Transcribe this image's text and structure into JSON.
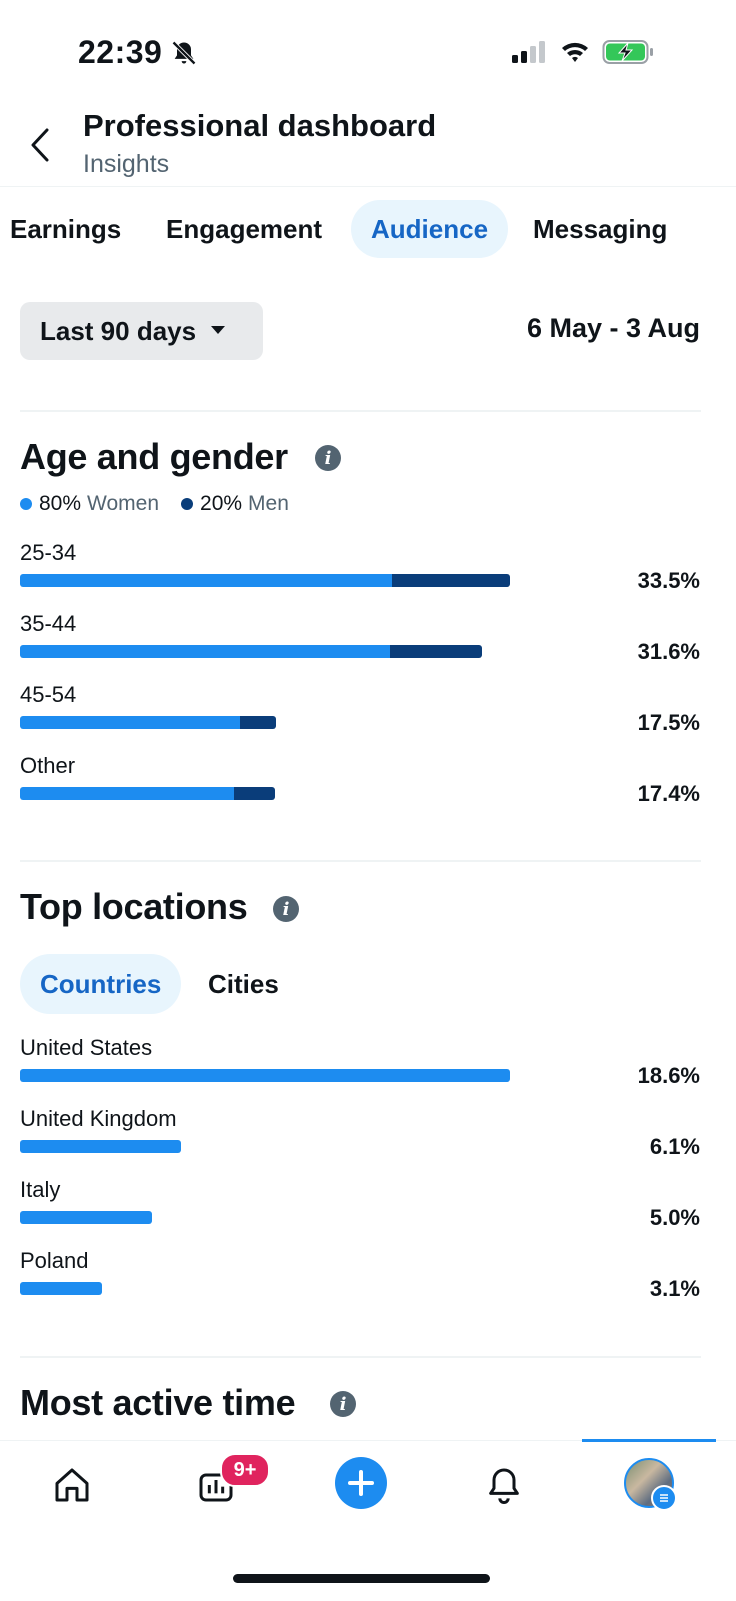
{
  "status_bar": {
    "time": "22:39"
  },
  "header": {
    "title": "Professional dashboard",
    "subtitle": "Insights"
  },
  "tabs": [
    {
      "label": "Earnings"
    },
    {
      "label": "Engagement"
    },
    {
      "label": "Audience",
      "active": true
    },
    {
      "label": "Messaging"
    }
  ],
  "filter": {
    "range_label": "Last 90 days",
    "date_range": "6 May - 3 Aug"
  },
  "age_gender": {
    "title": "Age and gender",
    "legend": [
      {
        "pct": "80%",
        "label": "Women",
        "color": "#1d8cf0"
      },
      {
        "pct": "20%",
        "label": "Men",
        "color": "#0a3d7a"
      }
    ],
    "rows": [
      {
        "label": "25-34",
        "pct": "33.5%",
        "value": 33.5,
        "women_share": 0.76
      },
      {
        "label": "35-44",
        "pct": "31.6%",
        "value": 31.6,
        "women_share": 0.8
      },
      {
        "label": "45-54",
        "pct": "17.5%",
        "value": 17.5,
        "women_share": 0.86
      },
      {
        "label": "Other",
        "pct": "17.4%",
        "value": 17.4,
        "women_share": 0.84
      }
    ]
  },
  "top_locations": {
    "title": "Top locations",
    "tabs": [
      {
        "label": "Countries",
        "active": true
      },
      {
        "label": "Cities"
      }
    ],
    "rows": [
      {
        "label": "United States",
        "pct": "18.6%",
        "value": 18.6
      },
      {
        "label": "United Kingdom",
        "pct": "6.1%",
        "value": 6.1
      },
      {
        "label": "Italy",
        "pct": "5.0%",
        "value": 5.0
      },
      {
        "label": "Poland",
        "pct": "3.1%",
        "value": 3.1
      }
    ]
  },
  "most_active": {
    "title": "Most active time"
  },
  "bottom_nav": {
    "items": [
      "home-icon",
      "analytics-icon",
      "compose-icon",
      "notifications-icon",
      "profile-avatar"
    ],
    "badge": "9+"
  },
  "colors": {
    "accent": "#1d8cf0",
    "men": "#0a3d7a",
    "active_tab_text": "#1666c5",
    "badge": "#e0245e"
  }
}
